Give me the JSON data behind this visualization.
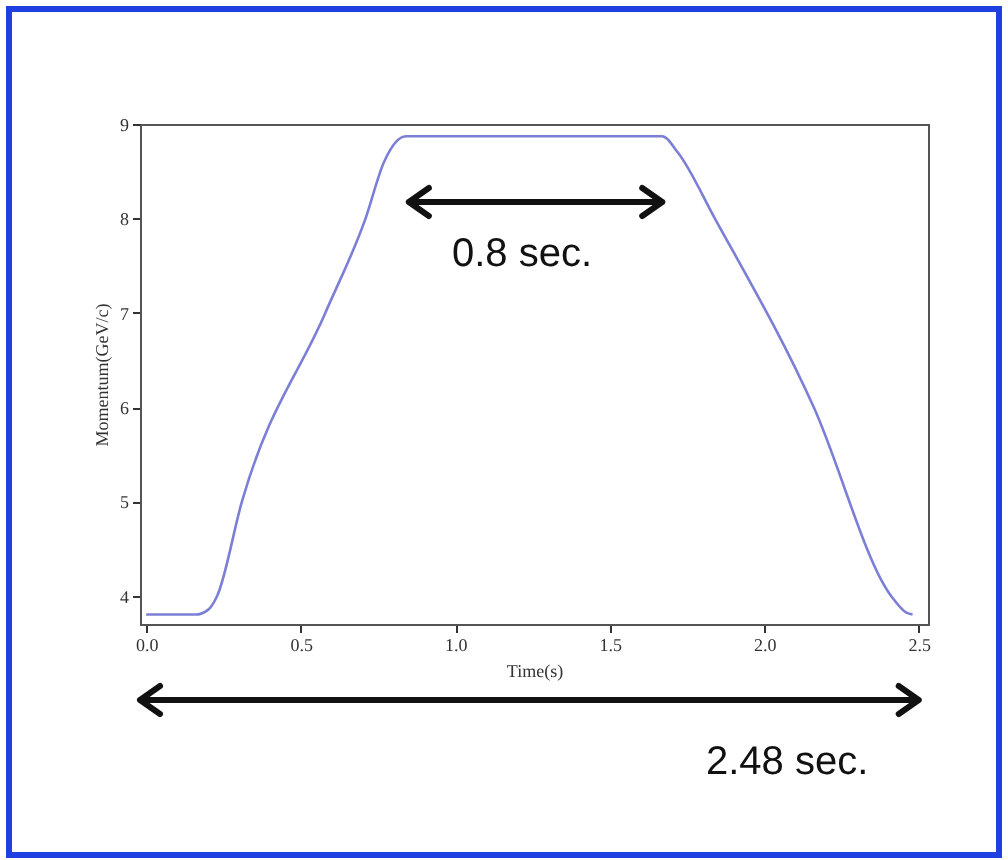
{
  "chart_data": {
    "type": "line",
    "xlabel": "Time(s)",
    "ylabel": "Momentum(GeV/c)",
    "x": [
      0,
      0.16,
      0.2,
      0.23,
      0.31,
      0.58,
      0.71,
      0.77,
      0.84,
      1.67,
      1.72,
      1.84,
      2.16,
      2.41,
      2.46,
      2.48
    ],
    "series": [
      {
        "color": "#7b7fd6",
        "values": [
          3.8,
          3.8,
          3.85,
          4.0,
          5.0,
          7.0,
          8.0,
          8.6,
          8.87,
          8.87,
          8.7,
          8.0,
          6.0,
          4.0,
          3.82,
          3.8
        ]
      }
    ],
    "xlim": [
      -0.02,
      2.53
    ],
    "ylim": [
      3.7,
      9
    ],
    "xticks": [
      {
        "value": 0,
        "label": "0.0"
      },
      {
        "value": 0.5,
        "label": "0.5"
      },
      {
        "value": 1,
        "label": "1.0"
      },
      {
        "value": 1.5,
        "label": "1.5"
      },
      {
        "value": 2,
        "label": "2.0"
      },
      {
        "value": 2.5,
        "label": "2.5"
      }
    ],
    "yticks": [
      4,
      5,
      6,
      7,
      8,
      9
    ],
    "grid": false,
    "marker": "none",
    "line_style": "solid",
    "annotations": [
      "0.8 sec.",
      "2.48 sec."
    ]
  }
}
